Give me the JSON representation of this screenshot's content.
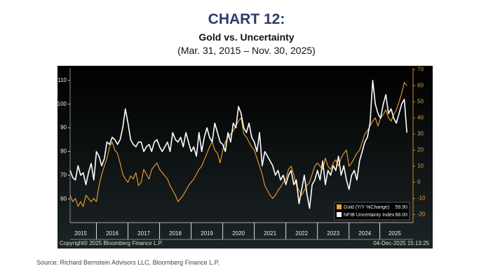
{
  "heading": {
    "label": "CHART 12:",
    "title": "Gold vs. Uncertainty",
    "subtitle": "(Mar. 31, 2015 – Nov. 30, 2025)"
  },
  "chart_data": {
    "type": "line",
    "x": [
      2015.167,
      2015.25,
      2015.333,
      2015.417,
      2015.5,
      2015.583,
      2015.667,
      2015.75,
      2015.833,
      2015.917,
      2016,
      2016.083,
      2016.167,
      2016.25,
      2016.333,
      2016.417,
      2016.5,
      2016.583,
      2016.667,
      2016.75,
      2016.833,
      2016.917,
      2017,
      2017.083,
      2017.167,
      2017.25,
      2017.333,
      2017.417,
      2017.5,
      2017.583,
      2017.667,
      2017.75,
      2017.833,
      2017.917,
      2018,
      2018.083,
      2018.167,
      2018.25,
      2018.333,
      2018.417,
      2018.5,
      2018.583,
      2018.667,
      2018.75,
      2018.833,
      2018.917,
      2019,
      2019.083,
      2019.167,
      2019.25,
      2019.333,
      2019.417,
      2019.5,
      2019.583,
      2019.667,
      2019.75,
      2019.833,
      2019.917,
      2020,
      2020.083,
      2020.167,
      2020.25,
      2020.333,
      2020.417,
      2020.5,
      2020.583,
      2020.667,
      2020.75,
      2020.833,
      2020.917,
      2021,
      2021.083,
      2021.167,
      2021.25,
      2021.333,
      2021.417,
      2021.5,
      2021.583,
      2021.667,
      2021.75,
      2021.833,
      2021.917,
      2022,
      2022.083,
      2022.167,
      2022.25,
      2022.333,
      2022.417,
      2022.5,
      2022.583,
      2022.667,
      2022.75,
      2022.833,
      2022.917,
      2023,
      2023.083,
      2023.167,
      2023.25,
      2023.333,
      2023.417,
      2023.5,
      2023.583,
      2023.667,
      2023.75,
      2023.833,
      2023.917,
      2024,
      2024.083,
      2024.167,
      2024.25,
      2024.333,
      2024.417,
      2024.5,
      2024.583,
      2024.667,
      2024.75,
      2024.833,
      2024.917,
      2025,
      2025.083,
      2025.167,
      2025.25,
      2025.333,
      2025.417,
      2025.5,
      2025.583,
      2025.667,
      2025.75,
      2025.833
    ],
    "series": [
      {
        "name": "Gold (Y/Y %Change)",
        "legend_value": "59.90",
        "color": "#f0a030",
        "axis": "y2",
        "values": [
          -8,
          -12,
          -10,
          -15,
          -12,
          -15,
          -8,
          -10,
          -12,
          -10,
          -12,
          -2,
          5,
          10,
          15,
          22,
          25,
          20,
          18,
          12,
          5,
          2,
          0,
          4,
          2,
          6,
          -2,
          0,
          8,
          5,
          2,
          8,
          10,
          12,
          8,
          6,
          4,
          2,
          -2,
          -5,
          -8,
          -12,
          -10,
          -8,
          -5,
          -2,
          0,
          2,
          5,
          8,
          10,
          14,
          18,
          22,
          25,
          20,
          18,
          12,
          20,
          25,
          28,
          30,
          32,
          35,
          38,
          40,
          30,
          28,
          25,
          22,
          20,
          15,
          10,
          5,
          -2,
          -5,
          -8,
          -10,
          -8,
          -5,
          -3,
          0,
          2,
          8,
          10,
          5,
          -2,
          -5,
          -8,
          -5,
          -2,
          0,
          5,
          10,
          12,
          10,
          8,
          15,
          10,
          8,
          12,
          14,
          10,
          15,
          18,
          20,
          10,
          12,
          15,
          18,
          20,
          25,
          30,
          32,
          35,
          38,
          40,
          35,
          40,
          42,
          45,
          40,
          38,
          42,
          45,
          50,
          55,
          62,
          59.9
        ]
      },
      {
        "name": "NFIB Uncertainty Index",
        "legend_value": "88.00",
        "color": "#ffffff",
        "values": [
          72,
          69,
          68,
          74,
          70,
          71,
          66,
          71,
          75,
          68,
          80,
          78,
          74,
          77,
          84,
          83,
          86,
          85,
          83,
          85,
          90,
          98,
          92,
          85,
          83,
          82,
          84,
          84,
          80,
          82,
          83,
          80,
          84,
          85,
          82,
          80,
          82,
          84,
          80,
          88,
          85,
          84,
          86,
          82,
          88,
          84,
          80,
          82,
          78,
          88,
          80,
          86,
          90,
          86,
          84,
          92,
          88,
          84,
          83,
          80,
          88,
          84,
          92,
          90,
          99,
          96,
          90,
          88,
          92,
          86,
          84,
          80,
          88,
          74,
          80,
          78,
          76,
          74,
          70,
          72,
          68,
          70,
          66,
          70,
          72,
          66,
          68,
          58,
          64,
          70,
          62,
          56,
          66,
          68,
          72,
          68,
          76,
          66,
          72,
          70,
          74,
          72,
          78,
          70,
          74,
          68,
          64,
          70,
          72,
          68,
          76,
          80,
          84,
          86,
          92,
          110,
          100,
          96,
          94,
          100,
          104,
          96,
          98,
          94,
          92,
          96,
          100,
          102,
          88
        ]
      }
    ],
    "xlim": [
      2015.167,
      2025.917
    ],
    "xticks": [
      {
        "value": 2015.5,
        "label": "2015"
      },
      {
        "value": 2016.5,
        "label": "2016"
      },
      {
        "value": 2017.5,
        "label": "2017"
      },
      {
        "value": 2018.5,
        "label": "2018"
      },
      {
        "value": 2019.5,
        "label": "2019"
      },
      {
        "value": 2020.5,
        "label": "2020"
      },
      {
        "value": 2021.5,
        "label": "2021"
      },
      {
        "value": 2022.5,
        "label": "2022"
      },
      {
        "value": 2023.5,
        "label": "2023"
      },
      {
        "value": 2024.5,
        "label": "2024"
      },
      {
        "value": 2025.45,
        "label": "2025"
      }
    ],
    "ylim": [
      50,
      115.3
    ],
    "yticks": [
      60,
      70,
      80,
      90,
      100,
      110
    ],
    "y2lim": [
      -25,
      71
    ],
    "y2ticks": [
      -20,
      -10,
      0,
      10,
      20,
      30,
      40,
      50,
      60,
      70
    ],
    "copyright": "Copyright© 2025 Bloomberg Finance L.P.",
    "timestamp": "04-Dec-2025 15:13:25"
  },
  "source": "Source: Richard Bernstein Advisors LLC, Bloomberg Finance L.P."
}
